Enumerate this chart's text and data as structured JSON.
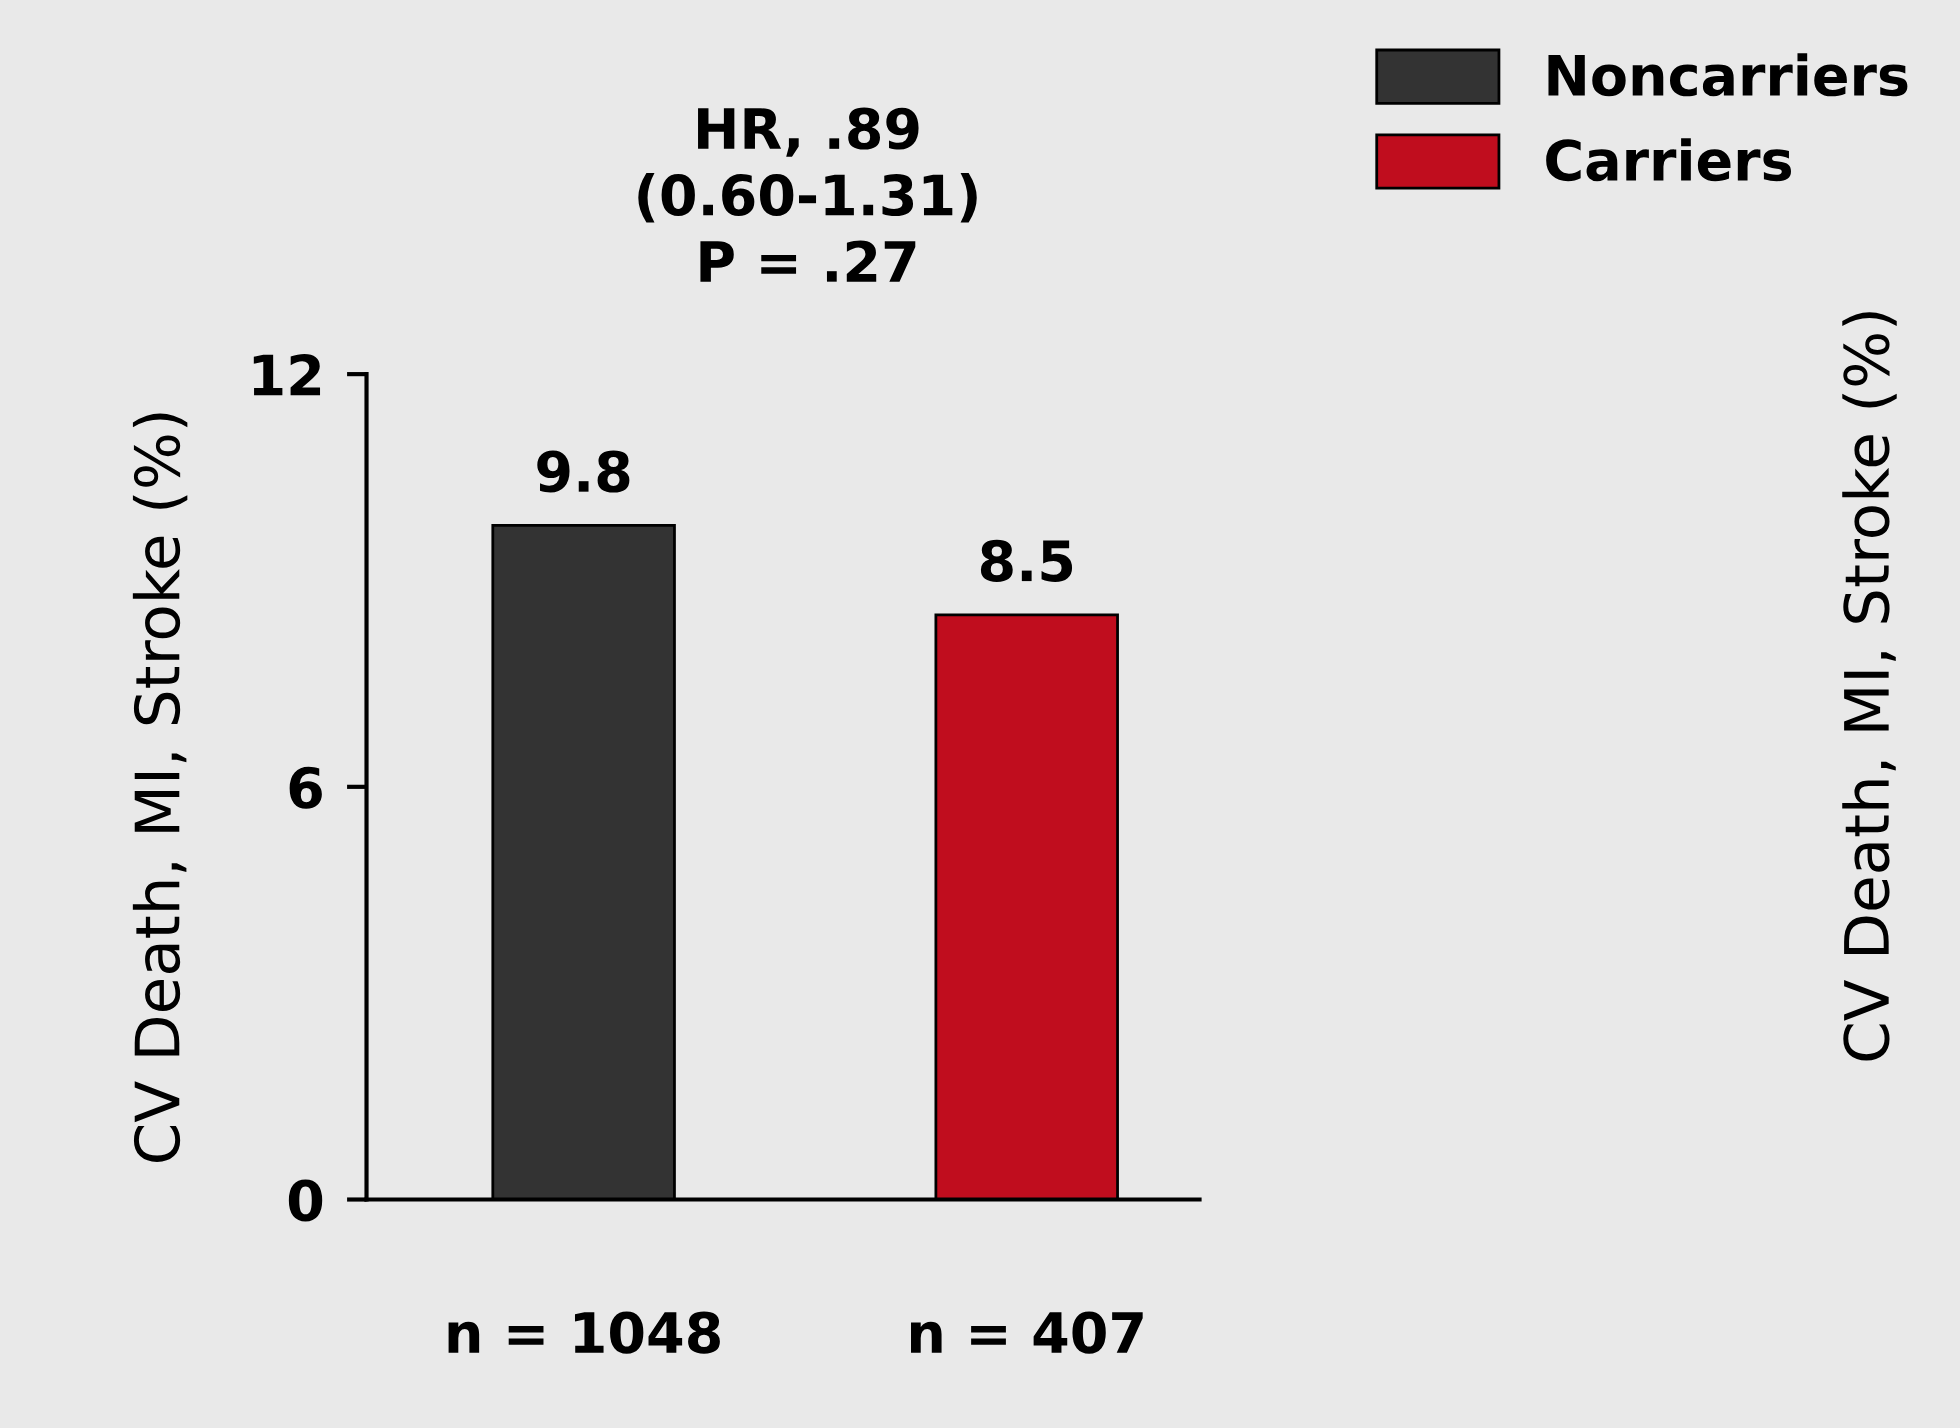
{
  "chart_data": {
    "type": "bar",
    "ylabel": "CV Death, MI, Stroke (%)",
    "categories": [
      "n = 1048",
      "n = 407"
    ],
    "series": [
      {
        "name": "Noncarriers",
        "color": "#333333",
        "values": [
          9.8,
          null
        ]
      },
      {
        "name": "Carriers",
        "color": "#c00d1e",
        "values": [
          null,
          8.5
        ]
      }
    ],
    "ylim": [
      0,
      12
    ],
    "yticks": [
      0,
      6,
      12
    ],
    "data_labels": true,
    "legend": "top right",
    "grid": false,
    "annotations": [
      "HR, .89\n(0.60-1.31)\nP = .27",
      "CV Death, MI, Stroke (%)"
    ]
  }
}
